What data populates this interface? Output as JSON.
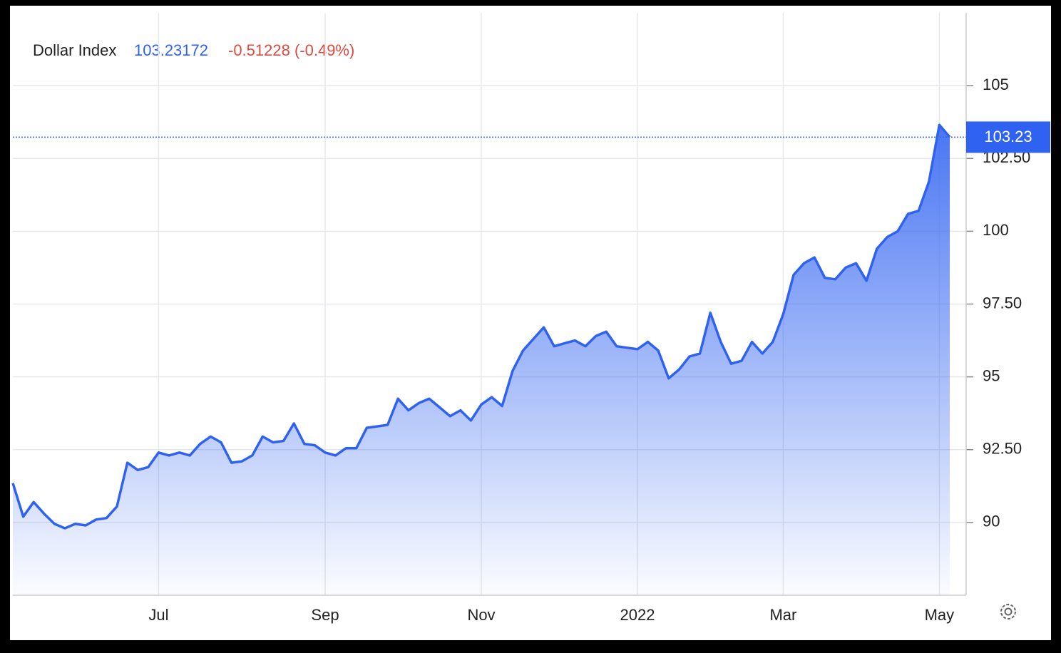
{
  "chart_data": {
    "type": "area",
    "header": {
      "price": "103.23172",
      "change": "-0.51228 (-0.49%)"
    },
    "categories": [
      null,
      null,
      null,
      null,
      null,
      null,
      null,
      null,
      null,
      null,
      null,
      null,
      null,
      null,
      "Jul",
      null,
      null,
      null,
      null,
      null,
      null,
      null,
      null,
      null,
      null,
      null,
      null,
      null,
      null,
      null,
      "Sep",
      null,
      null,
      null,
      null,
      null,
      null,
      null,
      null,
      null,
      null,
      null,
      null,
      null,
      null,
      "Nov",
      null,
      null,
      null,
      null,
      null,
      null,
      null,
      null,
      null,
      null,
      null,
      null,
      null,
      null,
      "2022",
      null,
      null,
      null,
      null,
      null,
      null,
      null,
      null,
      null,
      null,
      null,
      null,
      null,
      "Mar",
      null,
      null,
      null,
      null,
      null,
      null,
      null,
      null,
      null,
      null,
      null,
      null,
      null,
      null,
      "May",
      null
    ],
    "series": [
      {
        "name": "Dollar Index",
        "color": "#2f62f0",
        "values": [
          91.35,
          90.2,
          90.7,
          90.3,
          89.95,
          89.8,
          89.95,
          89.9,
          90.1,
          90.15,
          90.55,
          92.05,
          91.8,
          91.9,
          92.4,
          92.3,
          92.4,
          92.3,
          92.7,
          92.95,
          92.75,
          92.05,
          92.1,
          92.3,
          92.95,
          92.75,
          92.8,
          93.4,
          92.7,
          92.65,
          92.4,
          92.3,
          92.55,
          92.55,
          93.25,
          93.3,
          93.35,
          94.25,
          93.85,
          94.1,
          94.25,
          93.95,
          93.65,
          93.85,
          93.5,
          94.05,
          94.3,
          94.0,
          95.2,
          95.9,
          96.3,
          96.7,
          96.05,
          96.15,
          96.25,
          96.05,
          96.4,
          96.55,
          96.05,
          96.0,
          95.95,
          96.2,
          95.9,
          94.95,
          95.25,
          95.7,
          95.8,
          97.2,
          96.2,
          95.45,
          95.55,
          96.2,
          95.8,
          96.2,
          97.15,
          98.5,
          98.9,
          99.1,
          98.4,
          98.35,
          98.75,
          98.9,
          98.3,
          99.4,
          99.8,
          100.0,
          100.6,
          100.7,
          101.7,
          103.65,
          103.23172
        ]
      }
    ],
    "price_tag": 103.23,
    "ylim": [
      87.5,
      107.5
    ],
    "yticks": [
      90,
      {
        "value": 92.5,
        "label": "92.50"
      },
      95,
      {
        "value": 97.5,
        "label": "97.50"
      },
      100,
      {
        "value": 102.5,
        "label": "102.50"
      },
      105
    ],
    "grid": true
  }
}
